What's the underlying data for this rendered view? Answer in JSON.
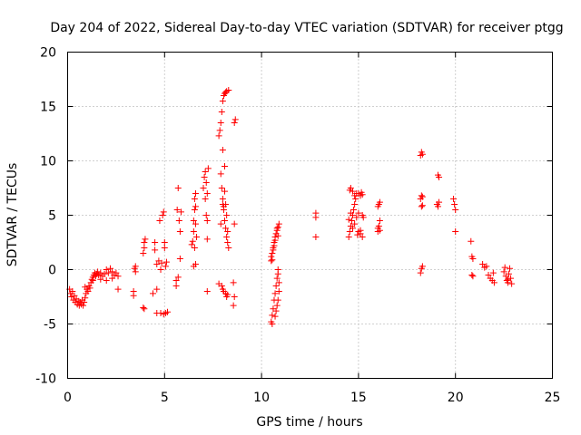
{
  "chart_data": {
    "type": "scatter",
    "title": "Day 204 of 2022, Sidereal Day-to-day VTEC variation (SDTVAR) for receiver ptgg",
    "xlabel": "GPS time / hours",
    "ylabel": "SDTVAR / TECUs",
    "xlim": [
      0,
      25
    ],
    "ylim": [
      -10,
      20
    ],
    "xticks": [
      0,
      5,
      10,
      15,
      20,
      25
    ],
    "yticks": [
      -10,
      -5,
      0,
      5,
      10,
      15,
      20
    ],
    "grid": true,
    "marker": "plus",
    "color": "#ff0000",
    "series": [
      {
        "name": "SDTVAR",
        "points": [
          [
            0.1,
            -1.8
          ],
          [
            0.15,
            -2.2
          ],
          [
            0.2,
            -2.5
          ],
          [
            0.25,
            -2.0
          ],
          [
            0.3,
            -2.8
          ],
          [
            0.35,
            -2.4
          ],
          [
            0.4,
            -3.0
          ],
          [
            0.45,
            -2.7
          ],
          [
            0.5,
            -3.2
          ],
          [
            0.55,
            -2.9
          ],
          [
            0.6,
            -3.3
          ],
          [
            0.65,
            -3.0
          ],
          [
            0.7,
            -3.2
          ],
          [
            0.75,
            -2.8
          ],
          [
            0.8,
            -3.3
          ],
          [
            0.85,
            -3.0
          ],
          [
            0.9,
            -2.6
          ],
          [
            0.95,
            -2.2
          ],
          [
            1.0,
            -1.8
          ],
          [
            1.05,
            -2.0
          ],
          [
            1.1,
            -1.5
          ],
          [
            1.15,
            -1.7
          ],
          [
            1.2,
            -1.2
          ],
          [
            1.25,
            -0.9
          ],
          [
            1.3,
            -0.7
          ],
          [
            1.35,
            -0.5
          ],
          [
            1.4,
            -0.3
          ],
          [
            1.45,
            -0.6
          ],
          [
            1.5,
            -0.4
          ],
          [
            1.55,
            -0.2
          ],
          [
            1.6,
            -0.5
          ],
          [
            1.7,
            -0.3
          ],
          [
            1.8,
            -0.6
          ],
          [
            1.9,
            -0.4
          ],
          [
            2.0,
            0.0
          ],
          [
            2.1,
            -0.3
          ],
          [
            2.2,
            0.1
          ],
          [
            2.3,
            -0.2
          ],
          [
            2.4,
            -0.5
          ],
          [
            2.5,
            -0.3
          ],
          [
            2.6,
            -0.6
          ],
          [
            2.0,
            -1.0
          ],
          [
            2.3,
            -0.8
          ],
          [
            2.6,
            -1.8
          ],
          [
            0.9,
            -1.6
          ],
          [
            1.3,
            -1.0
          ],
          [
            1.7,
            -0.9
          ],
          [
            3.4,
            -2.0
          ],
          [
            3.4,
            -2.4
          ],
          [
            3.45,
            0.1
          ],
          [
            3.5,
            -0.2
          ],
          [
            3.5,
            0.3
          ],
          [
            3.9,
            -3.5
          ],
          [
            3.95,
            -3.6
          ],
          [
            3.9,
            1.5
          ],
          [
            3.95,
            2.0
          ],
          [
            3.95,
            2.5
          ],
          [
            4.0,
            2.8
          ],
          [
            4.4,
            -2.2
          ],
          [
            4.5,
            1.8
          ],
          [
            4.5,
            2.5
          ],
          [
            4.6,
            -1.8
          ],
          [
            4.6,
            0.5
          ],
          [
            4.7,
            0.8
          ],
          [
            4.75,
            4.5
          ],
          [
            4.8,
            0.0
          ],
          [
            4.85,
            0.6
          ],
          [
            4.9,
            5.0
          ],
          [
            4.95,
            5.3
          ],
          [
            5.0,
            2.5
          ],
          [
            5.0,
            2.0
          ],
          [
            5.05,
            0.3
          ],
          [
            5.1,
            0.7
          ],
          [
            4.6,
            -4.0
          ],
          [
            4.8,
            -4.0
          ],
          [
            4.95,
            -4.1
          ],
          [
            5.05,
            -4.0
          ],
          [
            5.15,
            -3.9
          ],
          [
            5.6,
            -1.5
          ],
          [
            5.6,
            -1.0
          ],
          [
            5.65,
            5.5
          ],
          [
            5.7,
            -0.7
          ],
          [
            5.7,
            7.5
          ],
          [
            5.75,
            4.5
          ],
          [
            5.8,
            3.5
          ],
          [
            5.8,
            1.0
          ],
          [
            5.85,
            5.3
          ],
          [
            6.4,
            2.3
          ],
          [
            6.45,
            2.6
          ],
          [
            6.5,
            3.5
          ],
          [
            6.5,
            4.5
          ],
          [
            6.55,
            5.5
          ],
          [
            6.55,
            6.5
          ],
          [
            6.6,
            7.0
          ],
          [
            6.6,
            5.8
          ],
          [
            6.6,
            4.2
          ],
          [
            6.65,
            3.0
          ],
          [
            6.5,
            0.3
          ],
          [
            6.6,
            0.5
          ],
          [
            6.55,
            2.0
          ],
          [
            7.0,
            7.5
          ],
          [
            7.05,
            8.5
          ],
          [
            7.1,
            9.0
          ],
          [
            7.15,
            8.0
          ],
          [
            7.2,
            7.0
          ],
          [
            7.1,
            6.5
          ],
          [
            7.15,
            5.0
          ],
          [
            7.2,
            4.5
          ],
          [
            7.2,
            2.8
          ],
          [
            7.2,
            -2.0
          ],
          [
            7.25,
            9.3
          ],
          [
            7.9,
            8.8
          ],
          [
            7.95,
            7.5
          ],
          [
            8.0,
            6.5
          ],
          [
            8.0,
            6.0
          ],
          [
            8.05,
            5.5
          ],
          [
            8.1,
            4.5
          ],
          [
            8.15,
            3.8
          ],
          [
            8.2,
            3.0
          ],
          [
            8.25,
            2.5
          ],
          [
            8.3,
            2.0
          ],
          [
            7.8,
            12.3
          ],
          [
            7.85,
            12.8
          ],
          [
            7.9,
            13.5
          ],
          [
            7.95,
            14.5
          ],
          [
            8.0,
            15.5
          ],
          [
            8.05,
            16.0
          ],
          [
            8.1,
            16.2
          ],
          [
            8.15,
            16.3
          ],
          [
            8.2,
            16.4
          ],
          [
            8.3,
            16.5
          ],
          [
            8.0,
            11.0
          ],
          [
            8.1,
            9.5
          ],
          [
            8.05,
            5.8
          ],
          [
            7.9,
            4.2
          ],
          [
            8.1,
            7.2
          ],
          [
            8.15,
            6.0
          ],
          [
            8.2,
            5.0
          ],
          [
            8.25,
            3.5
          ],
          [
            7.95,
            -1.5
          ],
          [
            8.0,
            -1.8
          ],
          [
            8.05,
            -2.0
          ],
          [
            8.15,
            -2.2
          ],
          [
            8.2,
            -2.5
          ],
          [
            8.25,
            -2.3
          ],
          [
            7.8,
            -1.3
          ],
          [
            8.6,
            13.5
          ],
          [
            8.65,
            13.8
          ],
          [
            8.6,
            4.2
          ],
          [
            8.55,
            -1.2
          ],
          [
            8.6,
            -2.5
          ],
          [
            8.55,
            -3.3
          ],
          [
            10.5,
            -4.8
          ],
          [
            10.55,
            -4.2
          ],
          [
            10.6,
            -3.6
          ],
          [
            10.65,
            -2.8
          ],
          [
            10.7,
            -2.2
          ],
          [
            10.75,
            -1.5
          ],
          [
            10.8,
            -0.8
          ],
          [
            10.85,
            0.0
          ],
          [
            10.85,
            -0.4
          ],
          [
            10.9,
            -1.2
          ],
          [
            10.9,
            -2.0
          ],
          [
            10.85,
            -2.8
          ],
          [
            10.8,
            -3.3
          ],
          [
            10.75,
            -3.8
          ],
          [
            10.7,
            -4.3
          ],
          [
            10.55,
            -5.0
          ],
          [
            10.5,
            1.2
          ],
          [
            10.55,
            1.5
          ],
          [
            10.6,
            2.0
          ],
          [
            10.65,
            2.5
          ],
          [
            10.7,
            3.0
          ],
          [
            10.75,
            3.3
          ],
          [
            10.8,
            3.6
          ],
          [
            10.85,
            3.9
          ],
          [
            10.9,
            4.2
          ],
          [
            10.5,
            0.8
          ],
          [
            10.55,
            0.9
          ],
          [
            10.6,
            1.8
          ],
          [
            10.65,
            2.2
          ],
          [
            10.7,
            2.7
          ],
          [
            10.8,
            3.8
          ],
          [
            10.85,
            3.1
          ],
          [
            12.8,
            5.2
          ],
          [
            12.8,
            4.8
          ],
          [
            12.8,
            3.0
          ],
          [
            14.5,
            3.0
          ],
          [
            14.55,
            3.5
          ],
          [
            14.6,
            4.0
          ],
          [
            14.65,
            4.5
          ],
          [
            14.7,
            5.0
          ],
          [
            14.75,
            5.5
          ],
          [
            14.8,
            6.0
          ],
          [
            14.85,
            6.5
          ],
          [
            14.9,
            7.0
          ],
          [
            14.55,
            7.3
          ],
          [
            14.6,
            7.5
          ],
          [
            14.7,
            7.2
          ],
          [
            14.8,
            6.8
          ],
          [
            14.5,
            4.6
          ],
          [
            14.6,
            5.2
          ],
          [
            14.7,
            3.8
          ],
          [
            14.8,
            4.2
          ],
          [
            14.9,
            4.8
          ],
          [
            14.95,
            3.2
          ],
          [
            15.0,
            3.5
          ],
          [
            15.1,
            3.3
          ],
          [
            15.2,
            3.0
          ],
          [
            15.2,
            5.0
          ],
          [
            15.25,
            4.8
          ],
          [
            15.0,
            7.0
          ],
          [
            15.1,
            6.8
          ],
          [
            15.15,
            7.1
          ],
          [
            15.2,
            6.9
          ],
          [
            15.0,
            5.2
          ],
          [
            15.1,
            3.6
          ],
          [
            16.0,
            3.5
          ],
          [
            16.05,
            4.0
          ],
          [
            16.1,
            4.5
          ],
          [
            16.0,
            5.8
          ],
          [
            16.05,
            6.0
          ],
          [
            16.1,
            6.2
          ],
          [
            16.0,
            3.8
          ],
          [
            16.1,
            3.6
          ],
          [
            18.2,
            10.5
          ],
          [
            18.25,
            10.8
          ],
          [
            18.3,
            10.6
          ],
          [
            18.2,
            6.5
          ],
          [
            18.25,
            6.8
          ],
          [
            18.3,
            6.7
          ],
          [
            18.25,
            5.8
          ],
          [
            18.3,
            5.9
          ],
          [
            18.2,
            -0.3
          ],
          [
            18.25,
            0.1
          ],
          [
            18.3,
            0.3
          ],
          [
            19.1,
            8.7
          ],
          [
            19.15,
            8.5
          ],
          [
            19.05,
            6.0
          ],
          [
            19.1,
            5.8
          ],
          [
            19.15,
            6.2
          ],
          [
            19.9,
            6.5
          ],
          [
            19.95,
            6.0
          ],
          [
            20.0,
            5.5
          ],
          [
            20.0,
            3.5
          ],
          [
            20.8,
            2.6
          ],
          [
            20.85,
            1.2
          ],
          [
            20.9,
            1.0
          ],
          [
            20.85,
            -0.5
          ],
          [
            20.9,
            -0.6
          ],
          [
            21.4,
            0.5
          ],
          [
            21.5,
            0.2
          ],
          [
            21.6,
            0.3
          ],
          [
            21.7,
            -0.5
          ],
          [
            21.8,
            -0.8
          ],
          [
            21.9,
            -1.0
          ],
          [
            21.95,
            -0.3
          ],
          [
            22.0,
            -1.2
          ],
          [
            22.5,
            -0.2
          ],
          [
            22.55,
            0.2
          ],
          [
            22.6,
            -0.6
          ],
          [
            22.65,
            -1.0
          ],
          [
            22.7,
            -1.2
          ],
          [
            22.75,
            -0.4
          ],
          [
            22.8,
            0.1
          ],
          [
            22.85,
            -0.8
          ],
          [
            22.9,
            -1.3
          ],
          [
            22.7,
            -0.9
          ]
        ]
      }
    ]
  }
}
